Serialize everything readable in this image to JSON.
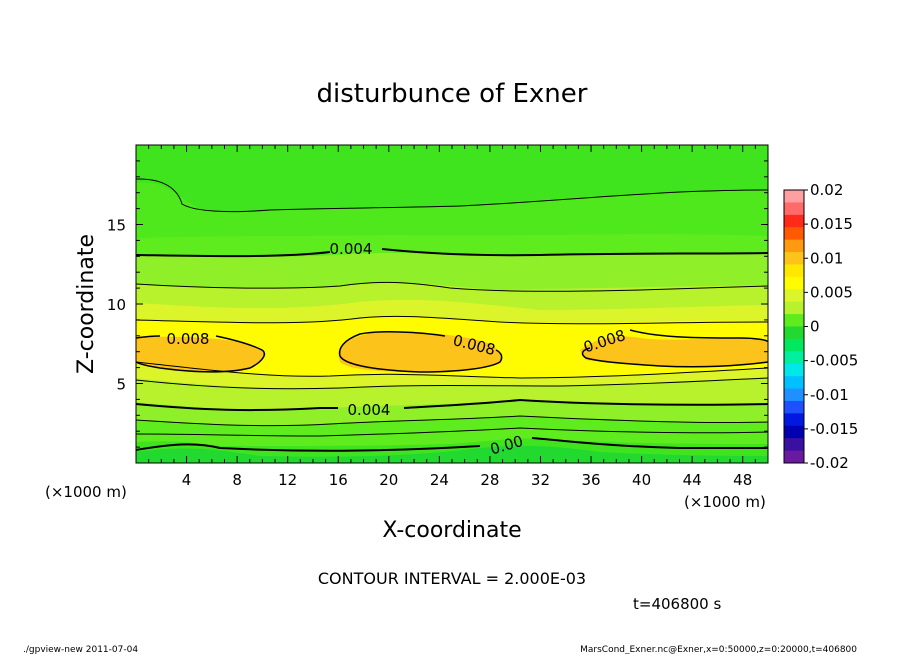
{
  "chart_data": {
    "type": "contour",
    "title": "disturbunce of Exner",
    "xlabel": "X-coordinate",
    "ylabel": "Z-coordinate",
    "x_unit": "(×1000 m)",
    "y_unit": "(×1000 m)",
    "xlim": [
      0,
      50
    ],
    "ylim": [
      0,
      20
    ],
    "x_ticks": [
      "4",
      "8",
      "12",
      "16",
      "20",
      "24",
      "28",
      "32",
      "36",
      "40",
      "44",
      "48"
    ],
    "y_ticks": [
      "5",
      "10",
      "15"
    ],
    "contour_interval_text": "CONTOUR INTERVAL = 2.000E-03",
    "time_text": "t=406800 s",
    "footer_left": "./gpview-new  2011-07-04",
    "footer_right": "MarsCond_Exner.nc@Exner,x=0:50000,z=0:20000,t=406800",
    "colorbar": {
      "range": [
        -0.02,
        0.02
      ],
      "labels": [
        "0.02",
        "0.015",
        "0.01",
        "0.005",
        "0",
        "-0.005",
        "-0.01",
        "-0.015",
        "-0.02"
      ]
    },
    "contour_labels": [
      "0.008",
      "0.008",
      "0.008",
      "0.004",
      "0.004",
      "0.00"
    ]
  }
}
